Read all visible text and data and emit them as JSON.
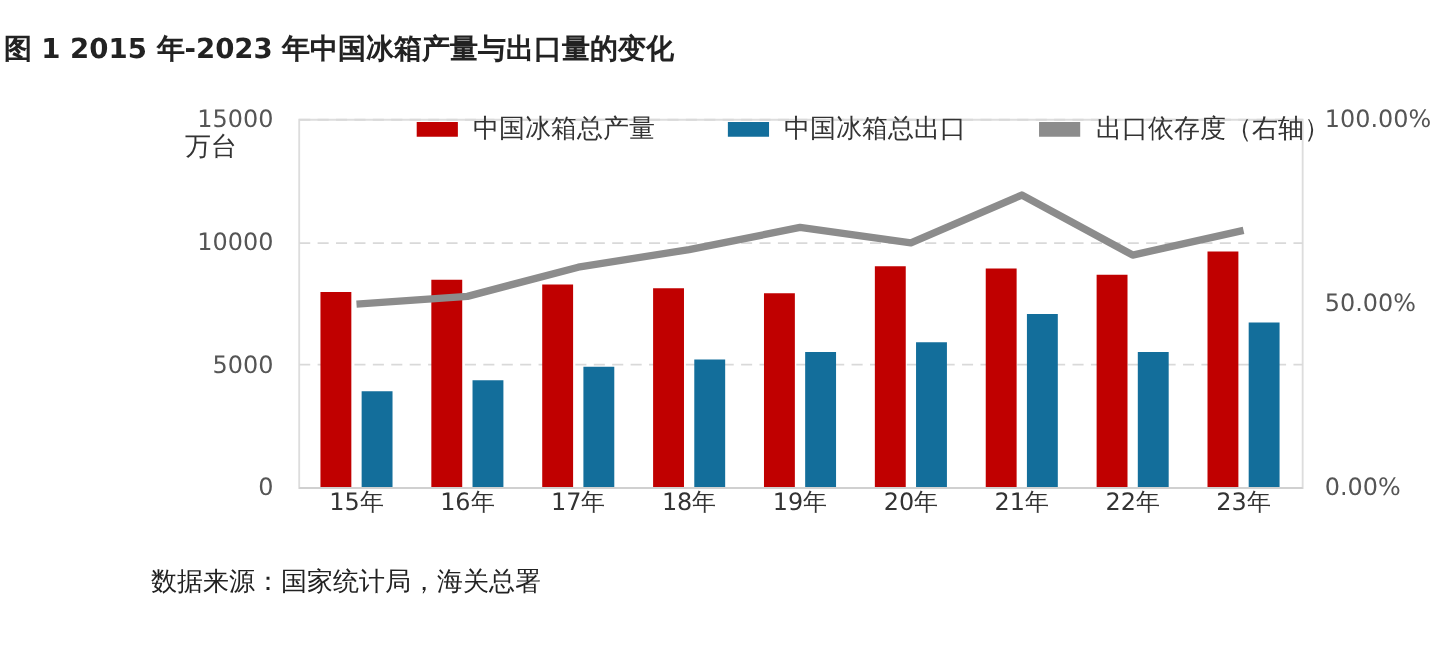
{
  "chart_data": {
    "type": "bar",
    "title": "图 1 2015 年-2023 年中国冰箱产量与出口量的变化",
    "ylabel": "万台",
    "categories": [
      "15年",
      "16年",
      "17年",
      "18年",
      "19年",
      "20年",
      "21年",
      "22年",
      "23年"
    ],
    "series": [
      {
        "name": "中国冰箱总产量",
        "color": "#c00000",
        "values": [
          7950,
          8450,
          8250,
          8100,
          7900,
          9000,
          8900,
          8650,
          9600
        ]
      },
      {
        "name": "中国冰箱总出口",
        "color": "#136e9b",
        "values": [
          3900,
          4350,
          4900,
          5200,
          5500,
          5900,
          7050,
          5500,
          6700
        ]
      },
      {
        "name": "出口依存度（右轴）",
        "color": "#8c8c8c",
        "type": "line",
        "axis": "y2",
        "values": [
          49.7,
          51.8,
          59.7,
          64.5,
          70.5,
          66.3,
          79.3,
          63.0,
          69.7
        ]
      }
    ],
    "ylim": [
      0,
      15000
    ],
    "yticks": [
      0,
      5000,
      10000,
      15000
    ],
    "y2lim": [
      0,
      100
    ],
    "y2ticks": [
      {
        "value": 0,
        "label": "0.00%"
      },
      {
        "value": 50,
        "label": "50.00%"
      },
      {
        "value": 100,
        "label": "100.00%"
      }
    ],
    "grid": "y",
    "legend": "top",
    "annotations": [
      "数据来源：国家统计局，海关总署"
    ]
  }
}
